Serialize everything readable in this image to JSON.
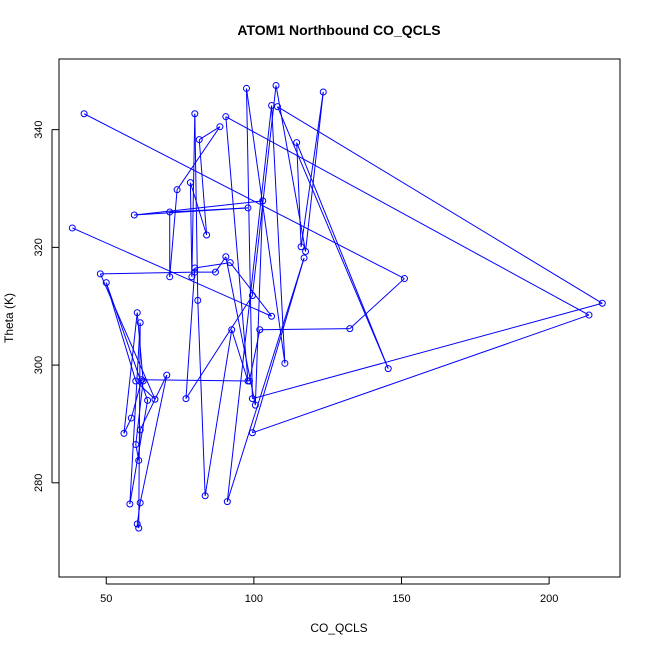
{
  "chart_data": {
    "type": "line",
    "title": "ATOM1 Northbound CO_QCLS",
    "xlabel": "CO_QCLS",
    "ylabel": "Theta (K)",
    "xlim": [
      34,
      224
    ],
    "ylim": [
      264,
      352
    ],
    "x_ticks": [
      50,
      100,
      150,
      200
    ],
    "y_ticks": [
      280,
      300,
      320,
      340
    ],
    "grid": false,
    "legend": "none",
    "point_style": "open-circle",
    "colors": {
      "series": "#0000ff",
      "axis": "#000000",
      "background": "#ffffff"
    },
    "series": [
      {
        "points": [
          [
            42.5,
            342.7
          ],
          [
            151,
            314.7
          ],
          [
            132.5,
            306.2
          ],
          [
            102,
            306.0
          ],
          [
            98.5,
            297.3
          ],
          [
            62,
            297.5
          ],
          [
            58.5,
            291.0
          ],
          [
            56,
            288.4
          ],
          [
            60.5,
            308.9
          ],
          [
            62.5,
            297.3
          ],
          [
            60,
            286.5
          ],
          [
            61,
            283.8
          ],
          [
            61.5,
            289.0
          ],
          [
            70.5,
            298.3
          ],
          [
            61.5,
            276.6
          ],
          [
            60.5,
            273.0
          ],
          [
            61,
            272.3
          ],
          [
            61.5,
            307.2
          ],
          [
            58,
            276.4
          ],
          [
            64,
            294.0
          ],
          [
            50,
            314.0
          ],
          [
            60,
            297.3
          ],
          [
            66.5,
            294.2
          ],
          [
            48,
            315.5
          ],
          [
            80,
            315.8
          ],
          [
            87,
            315.8
          ],
          [
            90.5,
            318.4
          ],
          [
            100.5,
            293.2
          ],
          [
            103,
            327.9
          ],
          [
            59.5,
            325.5
          ],
          [
            98,
            326.7
          ],
          [
            71.5,
            326.0
          ],
          [
            71.5,
            315.0
          ],
          [
            74,
            329.8
          ],
          [
            88.5,
            340.5
          ],
          [
            81.5,
            338.3
          ],
          [
            84,
            322.1
          ],
          [
            78.5,
            331.0
          ],
          [
            79,
            315.0
          ],
          [
            80,
            342.7
          ],
          [
            81,
            311.0
          ],
          [
            83.5,
            277.8
          ],
          [
            92.5,
            306.0
          ],
          [
            98,
            297.3
          ],
          [
            90.5,
            342.2
          ],
          [
            213.5,
            308.5
          ],
          [
            99.5,
            288.5
          ],
          [
            117,
            318.2
          ],
          [
            91,
            276.8
          ],
          [
            106,
            344.1
          ],
          [
            110.5,
            300.3
          ],
          [
            97.5,
            347.0
          ],
          [
            99.5,
            294.3
          ],
          [
            218,
            310.5
          ],
          [
            108,
            343.9
          ],
          [
            145.5,
            299.4
          ],
          [
            114.5,
            337.8
          ],
          [
            116,
            320.1
          ],
          [
            123.5,
            346.4
          ],
          [
            117.5,
            319.3
          ],
          [
            107.5,
            347.5
          ],
          [
            99.5,
            311.8
          ],
          [
            77,
            294.3
          ],
          [
            80,
            316.5
          ],
          [
            92,
            317.4
          ],
          [
            106,
            308.3
          ],
          [
            38.5,
            323.3
          ]
        ]
      }
    ]
  }
}
